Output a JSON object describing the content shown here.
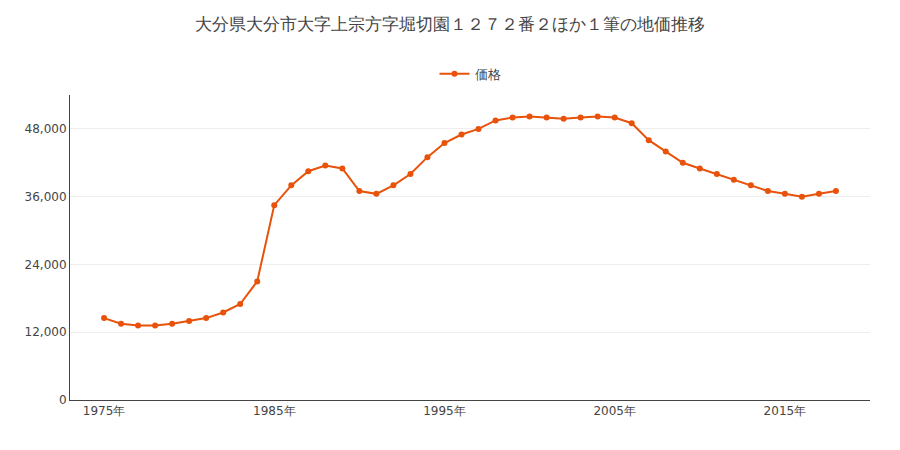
{
  "chart_data": {
    "type": "line",
    "title": "大分県大分市大字上宗方字堀切園１２７２番２ほか１筆の地価推移",
    "x": [
      1975,
      1976,
      1977,
      1978,
      1979,
      1980,
      1981,
      1982,
      1983,
      1984,
      1985,
      1986,
      1987,
      1988,
      1989,
      1990,
      1991,
      1992,
      1993,
      1994,
      1995,
      1996,
      1997,
      1998,
      1999,
      2000,
      2001,
      2002,
      2003,
      2004,
      2005,
      2006,
      2007,
      2008,
      2009,
      2010,
      2011,
      2012,
      2013,
      2014,
      2015,
      2016,
      2017,
      2018
    ],
    "series": [
      {
        "name": "価格",
        "color": "#e8520a",
        "marker": "circle",
        "values": [
          14500,
          13500,
          13200,
          13200,
          13500,
          14000,
          14500,
          15500,
          17000,
          21000,
          34500,
          38000,
          40500,
          41500,
          41000,
          37000,
          36500,
          38000,
          40000,
          43000,
          45500,
          47000,
          48000,
          49500,
          50000,
          50200,
          50000,
          49800,
          50000,
          50200,
          50000,
          49000,
          46000,
          44000,
          42000,
          41000,
          40000,
          39000,
          38000,
          37000,
          36500,
          36000,
          36500,
          37000
        ]
      }
    ],
    "xlim": [
      1973,
      2020
    ],
    "xticks": [
      {
        "value": 1975,
        "label": "1975年"
      },
      {
        "value": 1985,
        "label": "1985年"
      },
      {
        "value": 1995,
        "label": "1995年"
      },
      {
        "value": 2005,
        "label": "2005年"
      },
      {
        "value": 2015,
        "label": "2015年"
      }
    ],
    "ylim": [
      0,
      54000
    ],
    "yticks": [
      0,
      {
        "value": 12000,
        "label": "12,000"
      },
      {
        "value": 24000,
        "label": "24,000"
      },
      {
        "value": 36000,
        "label": "36,000"
      },
      {
        "value": 48000,
        "label": "48,000"
      }
    ],
    "grid": true,
    "legend": "top"
  }
}
